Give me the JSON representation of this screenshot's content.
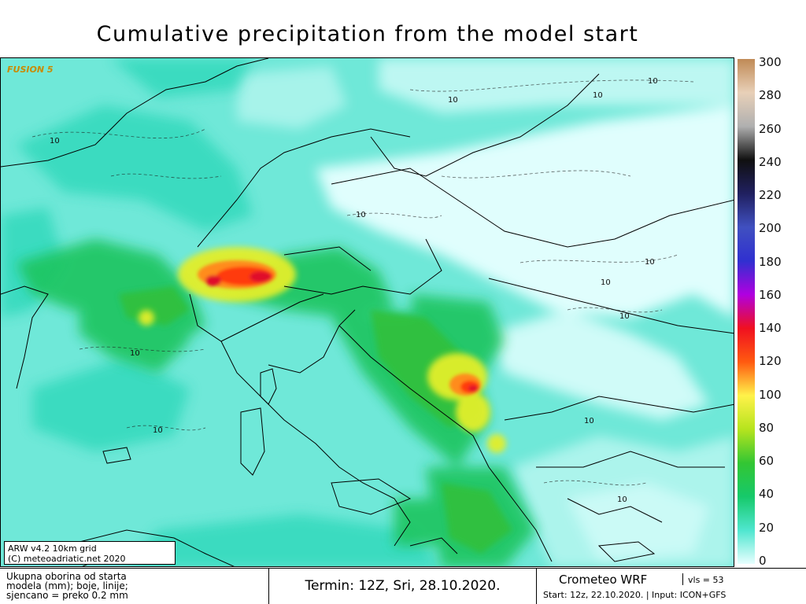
{
  "title": "Cumulative precipitation from the model start",
  "watermark": "FUSION 5",
  "info_box": {
    "line1": "ARW v4.2  10km grid",
    "line2": "(C) meteoadriatic.net 2020"
  },
  "contour_label": "10",
  "colorbar": {
    "labels": [
      "300",
      "280",
      "260",
      "240",
      "220",
      "200",
      "180",
      "160",
      "140",
      "120",
      "100",
      "80",
      "60",
      "40",
      "20",
      "0"
    ],
    "colors": {
      "0": "#e8ffff",
      "20": "#4fe6cf",
      "40": "#16c96a",
      "60": "#33c633",
      "80": "#b6e41e",
      "100": "#fff24a",
      "120": "#ff5a10",
      "140": "#f01020",
      "160": "#b000e0",
      "180": "#3030d0",
      "200": "#4050c0",
      "220": "#202060",
      "240": "#101010",
      "260": "#b0b0b0",
      "280": "#e8d0b8",
      "300": "#c08a56"
    }
  },
  "footer": {
    "desc_line1": "Ukupna oborina od starta",
    "desc_line2": "modela (mm); boje, linije;",
    "desc_line3": "sjencano = preko 0.2 mm",
    "valid_time": "Termin: 12Z, Sri, 28.10.2020.",
    "brand": "Crometeo WRF",
    "version": "vls = 53",
    "start": "Start: 12z, 22.10.2020.  |  Input: ICON+GFS"
  }
}
